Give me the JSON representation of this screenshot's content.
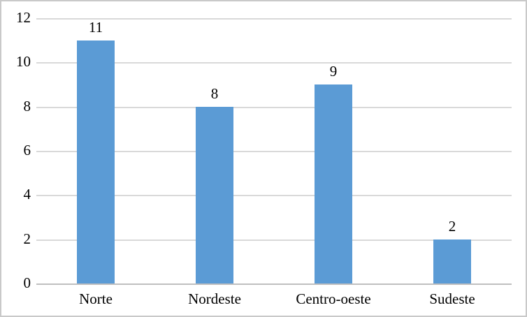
{
  "chart_data": {
    "type": "bar",
    "categories": [
      "Norte",
      "Nordeste",
      "Centro-oeste",
      "Sudeste"
    ],
    "values": [
      11,
      8,
      9,
      2
    ],
    "title": "",
    "xlabel": "",
    "ylabel": "",
    "ylim": [
      0,
      12
    ],
    "ytick_step": 2,
    "ytick_labels": [
      "0",
      "2",
      "4",
      "6",
      "8",
      "10",
      "12"
    ],
    "grid": true,
    "legend_position": "none",
    "colors": {
      "bar": "#5b9bd5",
      "gridline": "#d9d9d9",
      "axis_line": "#bfbfbf",
      "text": "#000000",
      "border": "#c9c9c9",
      "background": "#ffffff"
    }
  }
}
